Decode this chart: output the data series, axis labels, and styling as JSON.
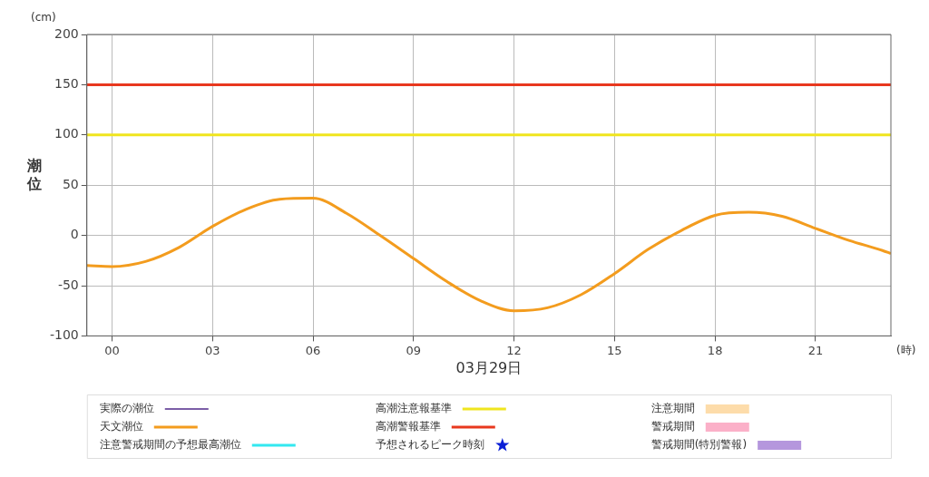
{
  "chart_data": {
    "type": "line",
    "xlabel": "03月29日",
    "ylabel": "潮位",
    "annotations": [
      "(cm)",
      "(時)"
    ],
    "x": [
      -0.75,
      0,
      1,
      2,
      3,
      4,
      5,
      6,
      7,
      8,
      9,
      10,
      11,
      12,
      13,
      14,
      15,
      16,
      17,
      18,
      19,
      20,
      21,
      22,
      23,
      23.25
    ],
    "series": [
      {
        "name": "実際の潮位",
        "color": "#7b5ea7",
        "values": [
          null,
          null,
          null,
          null,
          null,
          null,
          null,
          null,
          null,
          null,
          null,
          null,
          null,
          null,
          null,
          null,
          null,
          null,
          null,
          null,
          null,
          null,
          null,
          null,
          null,
          null
        ]
      },
      {
        "name": "天文潮位",
        "color": "#f39c1e",
        "values": [
          -30,
          -31,
          -26,
          -12,
          9,
          26,
          36,
          37,
          22,
          0,
          -23,
          -46,
          -65,
          -75,
          -72,
          -59,
          -38,
          -14,
          5,
          20,
          23,
          19,
          7,
          -5,
          -15,
          -18
        ]
      },
      {
        "name": "注意警戒期間の予想最高潮位",
        "color": "#33e8f0",
        "values": [
          null,
          null,
          null,
          null,
          null,
          null,
          null,
          null,
          null,
          null,
          null,
          null,
          null,
          null,
          null,
          null,
          null,
          null,
          null,
          null,
          null,
          null,
          null,
          null,
          null,
          null
        ]
      },
      {
        "name": "予想されるピーク時刻",
        "type": "scatter",
        "marker": "star",
        "color": "#0a1fd6",
        "values": [
          null,
          null,
          null,
          null,
          null,
          null,
          null,
          null,
          null,
          null,
          null,
          null,
          null,
          null,
          null,
          null,
          null,
          null,
          null,
          null,
          null,
          null,
          null,
          null,
          null,
          null
        ]
      },
      {
        "name": "注意期間",
        "type": "area",
        "color": "#fddcaa",
        "values": [
          null,
          null,
          null,
          null,
          null,
          null,
          null,
          null,
          null,
          null,
          null,
          null,
          null,
          null,
          null,
          null,
          null,
          null,
          null,
          null,
          null,
          null,
          null,
          null,
          null,
          null
        ]
      },
      {
        "name": "警戒期間",
        "type": "area",
        "color": "#fbb0c8",
        "values": [
          null,
          null,
          null,
          null,
          null,
          null,
          null,
          null,
          null,
          null,
          null,
          null,
          null,
          null,
          null,
          null,
          null,
          null,
          null,
          null,
          null,
          null,
          null,
          null,
          null,
          null
        ]
      },
      {
        "name": "警戒期間(特別警報)",
        "type": "area",
        "color": "#b597dd",
        "values": [
          null,
          null,
          null,
          null,
          null,
          null,
          null,
          null,
          null,
          null,
          null,
          null,
          null,
          null,
          null,
          null,
          null,
          null,
          null,
          null,
          null,
          null,
          null,
          null,
          null,
          null
        ]
      }
    ],
    "ref_lines": [
      {
        "axis": "y",
        "value": 100,
        "label": "高潮注意報基準",
        "color": "#f0e51e"
      },
      {
        "axis": "y",
        "value": 150,
        "label": "高潮警報基準",
        "color": "#e8381e"
      }
    ],
    "xlim": [
      -0.75,
      23.25
    ],
    "xticks": [
      {
        "value": 0,
        "label": "00"
      },
      {
        "value": 3,
        "label": "03"
      },
      {
        "value": 6,
        "label": "06"
      },
      {
        "value": 9,
        "label": "09"
      },
      {
        "value": 12,
        "label": "12"
      },
      {
        "value": 15,
        "label": "15"
      },
      {
        "value": 18,
        "label": "18"
      },
      {
        "value": 21,
        "label": "21"
      }
    ],
    "ylim": [
      -100,
      200
    ],
    "yticks": [
      -100,
      -50,
      0,
      50,
      100,
      150,
      200
    ],
    "grid": true,
    "legend": "bottom",
    "marker": "none",
    "line_style": "solid"
  }
}
